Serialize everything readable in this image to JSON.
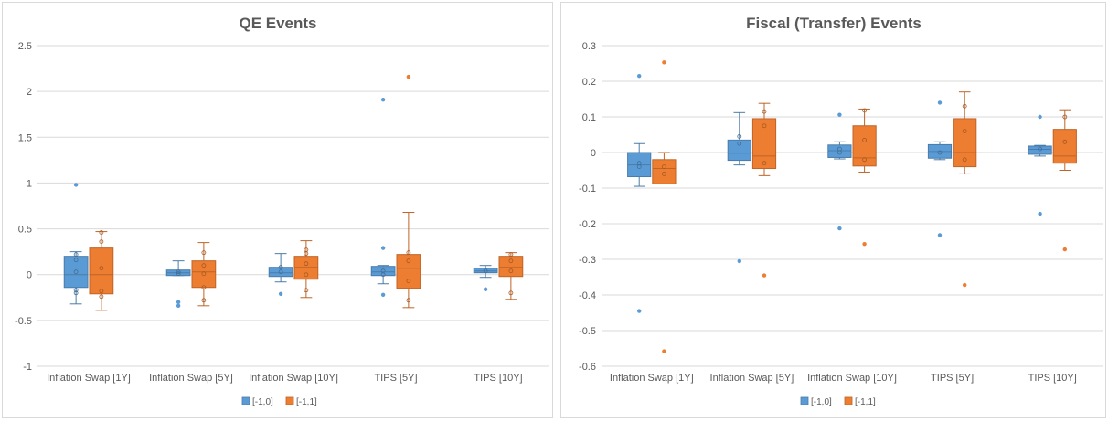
{
  "chart_data": [
    {
      "type": "box",
      "title": "QE Events",
      "ylim": [
        -1,
        2.5
      ],
      "yticks": [
        -1,
        -0.5,
        0,
        0.5,
        1,
        1.5,
        2,
        2.5
      ],
      "ytick_labels": [
        "-1",
        "-0.5",
        "0",
        "0.5",
        "1",
        "1.5",
        "2",
        "2.5"
      ],
      "categories": [
        "Inflation Swap [1Y]",
        "Inflation Swap [5Y]",
        "Inflation Swap [10Y]",
        "TIPS [5Y]",
        "TIPS [10Y]"
      ],
      "grid": true,
      "legend_position": "bottom",
      "series": [
        {
          "name": "[-1,0]",
          "color": "#5B9BD5",
          "boxes": [
            {
              "whisker_low": -0.32,
              "q1": -0.14,
              "median": 0.0,
              "q3": 0.2,
              "whisker_high": 0.25,
              "outliers": [
                0.98
              ],
              "points": [
                -0.2,
                -0.17,
                0.03,
                0.16,
                0.22
              ]
            },
            {
              "whisker_low": -0.01,
              "q1": -0.01,
              "median": 0.02,
              "q3": 0.05,
              "whisker_high": 0.15,
              "outliers": [
                -0.3,
                -0.34
              ],
              "points": [
                0.01,
                0.03
              ]
            },
            {
              "whisker_low": -0.08,
              "q1": -0.02,
              "median": 0.02,
              "q3": 0.08,
              "whisker_high": 0.23,
              "outliers": [
                -0.21
              ],
              "points": [
                0.03,
                0.08
              ]
            },
            {
              "whisker_low": -0.1,
              "q1": -0.01,
              "median": 0.03,
              "q3": 0.09,
              "whisker_high": 0.1,
              "outliers": [
                1.91,
                0.29,
                -0.22
              ],
              "points": [
                0.0,
                0.04
              ]
            },
            {
              "whisker_low": -0.03,
              "q1": 0.02,
              "median": 0.04,
              "q3": 0.07,
              "whisker_high": 0.1,
              "outliers": [
                -0.16
              ],
              "points": [
                0.04
              ]
            }
          ]
        },
        {
          "name": "[-1,1]",
          "color": "#ED7D31",
          "boxes": [
            {
              "whisker_low": -0.39,
              "q1": -0.21,
              "median": 0.0,
              "q3": 0.29,
              "whisker_high": 0.47,
              "outliers": [],
              "points": [
                -0.24,
                -0.18,
                0.07,
                0.36,
                0.46
              ]
            },
            {
              "whisker_low": -0.34,
              "q1": -0.14,
              "median": 0.03,
              "q3": 0.15,
              "whisker_high": 0.35,
              "outliers": [],
              "points": [
                -0.28,
                -0.14,
                0.01,
                0.1,
                0.24
              ]
            },
            {
              "whisker_low": -0.25,
              "q1": -0.05,
              "median": 0.08,
              "q3": 0.2,
              "whisker_high": 0.37,
              "outliers": [],
              "points": [
                -0.17,
                0.0,
                0.12,
                0.23,
                0.27
              ]
            },
            {
              "whisker_low": -0.36,
              "q1": -0.15,
              "median": 0.07,
              "q3": 0.22,
              "whisker_high": 0.68,
              "outliers": [
                2.16
              ],
              "points": [
                -0.28,
                -0.07,
                0.15,
                0.24
              ]
            },
            {
              "whisker_low": -0.27,
              "q1": -0.02,
              "median": 0.08,
              "q3": 0.2,
              "whisker_high": 0.24,
              "outliers": [],
              "points": [
                -0.2,
                0.04,
                0.15,
                0.22
              ]
            }
          ]
        }
      ]
    },
    {
      "type": "box",
      "title": "Fiscal (Transfer) Events",
      "ylim": [
        -0.6,
        0.3
      ],
      "yticks": [
        -0.6,
        -0.5,
        -0.4,
        -0.3,
        -0.2,
        -0.1,
        0,
        0.1,
        0.2,
        0.3
      ],
      "ytick_labels": [
        "-0.6",
        "-0.5",
        "-0.4",
        "-0.3",
        "-0.2",
        "-0.1",
        "0",
        "0.1",
        "0.2",
        "0.3"
      ],
      "categories": [
        "Inflation Swap [1Y]",
        "Inflation Swap [5Y]",
        "Inflation Swap [10Y]",
        "TIPS [5Y]",
        "TIPS [10Y]"
      ],
      "grid": true,
      "legend_position": "bottom",
      "series": [
        {
          "name": "[-1,0]",
          "color": "#5B9BD5",
          "boxes": [
            {
              "whisker_low": -0.095,
              "q1": -0.068,
              "median": -0.035,
              "q3": 0.0,
              "whisker_high": 0.025,
              "outliers": [
                0.215,
                -0.445
              ],
              "points": [
                -0.04,
                -0.03
              ]
            },
            {
              "whisker_low": -0.035,
              "q1": -0.022,
              "median": -0.002,
              "q3": 0.035,
              "whisker_high": 0.112,
              "outliers": [
                -0.305
              ],
              "points": [
                0.045,
                0.025
              ]
            },
            {
              "whisker_low": -0.018,
              "q1": -0.014,
              "median": 0.005,
              "q3": 0.021,
              "whisker_high": 0.03,
              "outliers": [
                0.106,
                -0.213
              ],
              "points": [
                0.0,
                0.01
              ]
            },
            {
              "whisker_low": -0.02,
              "q1": -0.016,
              "median": 0.003,
              "q3": 0.022,
              "whisker_high": 0.03,
              "outliers": [
                0.14,
                -0.232
              ],
              "points": [
                0.0
              ]
            },
            {
              "whisker_low": -0.01,
              "q1": -0.005,
              "median": 0.009,
              "q3": 0.018,
              "whisker_high": 0.02,
              "outliers": [
                0.1,
                -0.172
              ],
              "points": [
                0.01
              ]
            }
          ]
        },
        {
          "name": "[-1,1]",
          "color": "#ED7D31",
          "boxes": [
            {
              "whisker_low": -0.088,
              "q1": -0.088,
              "median": -0.045,
              "q3": -0.02,
              "whisker_high": 0.0,
              "outliers": [
                0.253,
                -0.558
              ],
              "points": [
                -0.06,
                -0.04
              ]
            },
            {
              "whisker_low": -0.065,
              "q1": -0.045,
              "median": -0.01,
              "q3": 0.095,
              "whisker_high": 0.138,
              "outliers": [
                -0.345
              ],
              "points": [
                -0.03,
                0.075,
                0.115
              ]
            },
            {
              "whisker_low": -0.055,
              "q1": -0.038,
              "median": -0.015,
              "q3": 0.075,
              "whisker_high": 0.122,
              "outliers": [
                -0.257
              ],
              "points": [
                -0.02,
                0.035,
                0.118
              ]
            },
            {
              "whisker_low": -0.06,
              "q1": -0.04,
              "median": 0.0,
              "q3": 0.095,
              "whisker_high": 0.17,
              "outliers": [
                -0.372
              ],
              "points": [
                -0.02,
                0.06,
                0.13
              ]
            },
            {
              "whisker_low": -0.05,
              "q1": -0.03,
              "median": -0.01,
              "q3": 0.065,
              "whisker_high": 0.12,
              "outliers": [
                -0.272
              ],
              "points": [
                0.03,
                0.1
              ]
            }
          ]
        }
      ]
    }
  ]
}
